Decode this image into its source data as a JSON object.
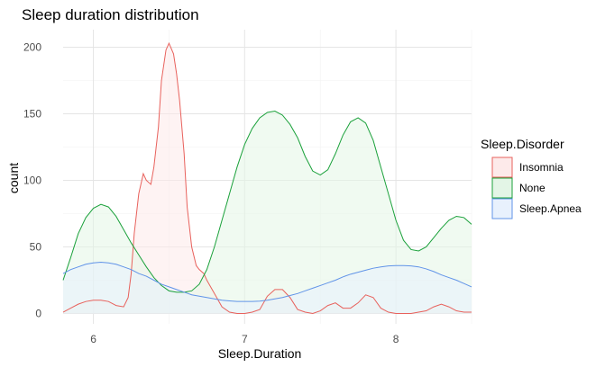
{
  "chart_data": {
    "type": "area",
    "title": "Sleep duration distribution",
    "xlabel": "Sleep.Duration",
    "ylabel": "count",
    "xlim": [
      5.8,
      8.5
    ],
    "ylim": [
      0,
      210
    ],
    "x_ticks": [
      6,
      7,
      8
    ],
    "y_ticks": [
      0,
      50,
      100,
      150,
      200
    ],
    "grid": true,
    "legend": {
      "title": "Sleep.Disorder",
      "position": "right",
      "entries": [
        "Insomnia",
        "None",
        "Sleep.Apnea"
      ]
    },
    "series": [
      {
        "name": "Insomnia",
        "color": "#e8615c",
        "fill": "#fdeaea",
        "points": [
          [
            5.8,
            1
          ],
          [
            5.85,
            4
          ],
          [
            5.9,
            7
          ],
          [
            5.95,
            9
          ],
          [
            6.0,
            10
          ],
          [
            6.05,
            10
          ],
          [
            6.1,
            9
          ],
          [
            6.15,
            6
          ],
          [
            6.2,
            5
          ],
          [
            6.23,
            12
          ],
          [
            6.25,
            30
          ],
          [
            6.27,
            60
          ],
          [
            6.3,
            90
          ],
          [
            6.33,
            105
          ],
          [
            6.35,
            100
          ],
          [
            6.38,
            97
          ],
          [
            6.4,
            110
          ],
          [
            6.43,
            140
          ],
          [
            6.45,
            175
          ],
          [
            6.48,
            198
          ],
          [
            6.5,
            203
          ],
          [
            6.53,
            195
          ],
          [
            6.55,
            180
          ],
          [
            6.57,
            160
          ],
          [
            6.6,
            120
          ],
          [
            6.62,
            80
          ],
          [
            6.65,
            50
          ],
          [
            6.68,
            36
          ],
          [
            6.7,
            33
          ],
          [
            6.73,
            30
          ],
          [
            6.75,
            25
          ],
          [
            6.8,
            15
          ],
          [
            6.85,
            5
          ],
          [
            6.9,
            1
          ],
          [
            6.95,
            0
          ],
          [
            7.0,
            0
          ],
          [
            7.05,
            1
          ],
          [
            7.1,
            3
          ],
          [
            7.15,
            13
          ],
          [
            7.2,
            18
          ],
          [
            7.25,
            18
          ],
          [
            7.3,
            12
          ],
          [
            7.35,
            3
          ],
          [
            7.4,
            1
          ],
          [
            7.45,
            0
          ],
          [
            7.5,
            2
          ],
          [
            7.55,
            6
          ],
          [
            7.6,
            8
          ],
          [
            7.65,
            4
          ],
          [
            7.7,
            4
          ],
          [
            7.75,
            8
          ],
          [
            7.8,
            14
          ],
          [
            7.85,
            12
          ],
          [
            7.9,
            4
          ],
          [
            7.95,
            1
          ],
          [
            8.0,
            0
          ],
          [
            8.1,
            0
          ],
          [
            8.2,
            2
          ],
          [
            8.25,
            5
          ],
          [
            8.3,
            7
          ],
          [
            8.35,
            5
          ],
          [
            8.4,
            2
          ],
          [
            8.45,
            1
          ],
          [
            8.5,
            1
          ]
        ]
      },
      {
        "name": "None",
        "color": "#1ba13b",
        "fill": "#e3f5e6",
        "points": [
          [
            5.8,
            25
          ],
          [
            5.85,
            42
          ],
          [
            5.9,
            60
          ],
          [
            5.95,
            72
          ],
          [
            6.0,
            79
          ],
          [
            6.05,
            82
          ],
          [
            6.1,
            80
          ],
          [
            6.15,
            73
          ],
          [
            6.2,
            63
          ],
          [
            6.25,
            53
          ],
          [
            6.3,
            44
          ],
          [
            6.35,
            35
          ],
          [
            6.4,
            27
          ],
          [
            6.45,
            21
          ],
          [
            6.5,
            17
          ],
          [
            6.55,
            16
          ],
          [
            6.6,
            16
          ],
          [
            6.65,
            17
          ],
          [
            6.7,
            22
          ],
          [
            6.75,
            33
          ],
          [
            6.8,
            50
          ],
          [
            6.85,
            70
          ],
          [
            6.9,
            90
          ],
          [
            6.95,
            110
          ],
          [
            7.0,
            127
          ],
          [
            7.05,
            139
          ],
          [
            7.1,
            147
          ],
          [
            7.15,
            151
          ],
          [
            7.2,
            152
          ],
          [
            7.25,
            149
          ],
          [
            7.3,
            142
          ],
          [
            7.35,
            132
          ],
          [
            7.4,
            118
          ],
          [
            7.45,
            107
          ],
          [
            7.5,
            104
          ],
          [
            7.55,
            108
          ],
          [
            7.6,
            120
          ],
          [
            7.65,
            134
          ],
          [
            7.7,
            144
          ],
          [
            7.75,
            147
          ],
          [
            7.8,
            143
          ],
          [
            7.85,
            130
          ],
          [
            7.9,
            110
          ],
          [
            7.95,
            90
          ],
          [
            8.0,
            70
          ],
          [
            8.05,
            55
          ],
          [
            8.1,
            48
          ],
          [
            8.15,
            47
          ],
          [
            8.2,
            50
          ],
          [
            8.25,
            57
          ],
          [
            8.3,
            64
          ],
          [
            8.35,
            70
          ],
          [
            8.4,
            73
          ],
          [
            8.45,
            72
          ],
          [
            8.5,
            67
          ]
        ]
      },
      {
        "name": "Sleep.Apnea",
        "color": "#6093e8",
        "fill": "#e8f1fd",
        "points": [
          [
            5.8,
            30
          ],
          [
            5.85,
            33
          ],
          [
            5.9,
            35
          ],
          [
            5.95,
            37
          ],
          [
            6.0,
            38
          ],
          [
            6.05,
            38.5
          ],
          [
            6.1,
            38
          ],
          [
            6.15,
            37
          ],
          [
            6.2,
            35
          ],
          [
            6.25,
            33
          ],
          [
            6.3,
            30
          ],
          [
            6.35,
            28
          ],
          [
            6.4,
            25
          ],
          [
            6.45,
            22
          ],
          [
            6.5,
            20
          ],
          [
            6.55,
            18
          ],
          [
            6.6,
            16
          ],
          [
            6.65,
            14
          ],
          [
            6.7,
            13
          ],
          [
            6.75,
            12
          ],
          [
            6.8,
            11
          ],
          [
            6.85,
            10
          ],
          [
            6.9,
            9.5
          ],
          [
            6.95,
            9
          ],
          [
            7.0,
            9
          ],
          [
            7.05,
            9
          ],
          [
            7.1,
            9.3
          ],
          [
            7.15,
            10
          ],
          [
            7.2,
            11
          ],
          [
            7.25,
            12
          ],
          [
            7.3,
            13.5
          ],
          [
            7.35,
            15
          ],
          [
            7.4,
            17
          ],
          [
            7.45,
            19
          ],
          [
            7.5,
            21
          ],
          [
            7.55,
            23
          ],
          [
            7.6,
            25
          ],
          [
            7.65,
            27.5
          ],
          [
            7.7,
            29.5
          ],
          [
            7.75,
            31
          ],
          [
            7.8,
            32.5
          ],
          [
            7.85,
            34
          ],
          [
            7.9,
            35
          ],
          [
            7.95,
            35.7
          ],
          [
            8.0,
            36
          ],
          [
            8.05,
            36
          ],
          [
            8.1,
            35.7
          ],
          [
            8.15,
            35
          ],
          [
            8.2,
            33.5
          ],
          [
            8.25,
            31.5
          ],
          [
            8.3,
            29
          ],
          [
            8.35,
            27
          ],
          [
            8.4,
            25
          ],
          [
            8.45,
            22.5
          ],
          [
            8.5,
            20
          ]
        ]
      }
    ]
  }
}
